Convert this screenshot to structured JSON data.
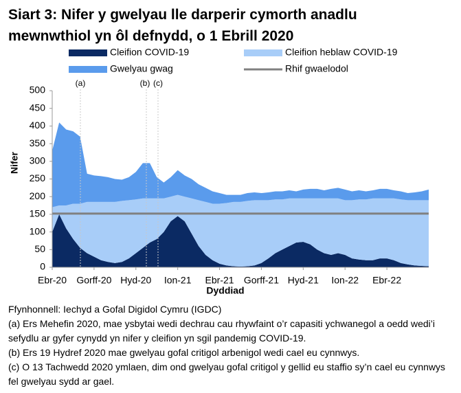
{
  "chart_data": {
    "type": "area",
    "title": "Siart 3: Nifer y gwelyau lle darperir cymorth anadlu mewnwthiol yn ôl defnydd, o 1 Ebrill 2020",
    "xlabel": "Dyddiad",
    "ylabel": "Nifer",
    "categories": [
      "Ebr-20",
      null,
      null,
      null,
      null,
      null,
      "Gorff-20",
      null,
      null,
      null,
      null,
      null,
      "Hyd-20",
      null,
      null,
      null,
      null,
      null,
      "Ion-21",
      null,
      null,
      null,
      null,
      null,
      "Ebr-21",
      null,
      null,
      null,
      null,
      null,
      "Gorff-21",
      null,
      null,
      null,
      null,
      null,
      "Hyd-21",
      null,
      null,
      null,
      null,
      null,
      "Ion-22",
      null,
      null,
      null,
      null,
      null,
      "Ebr-22",
      null,
      null,
      null,
      null,
      null,
      null
    ],
    "series": [
      {
        "name": "Cleifion COVID-19",
        "color": "#0b2a63",
        "values": [
          100,
          150,
          110,
          80,
          55,
          40,
          30,
          20,
          15,
          12,
          15,
          25,
          40,
          55,
          70,
          80,
          100,
          130,
          145,
          130,
          95,
          60,
          35,
          20,
          10,
          5,
          3,
          2,
          3,
          5,
          12,
          25,
          40,
          50,
          60,
          70,
          72,
          65,
          50,
          40,
          35,
          40,
          35,
          25,
          22,
          20,
          20,
          25,
          25,
          20,
          12,
          8,
          5,
          4,
          3
        ]
      },
      {
        "name": "Cleifion heblaw COVID-19",
        "color": "#a8cdf8",
        "values": [
          70,
          25,
          65,
          100,
          125,
          145,
          155,
          165,
          170,
          173,
          173,
          165,
          152,
          140,
          125,
          115,
          95,
          70,
          60,
          70,
          100,
          130,
          150,
          160,
          170,
          177,
          182,
          183,
          185,
          185,
          178,
          165,
          152,
          142,
          135,
          125,
          123,
          130,
          145,
          155,
          160,
          155,
          155,
          165,
          170,
          172,
          175,
          170,
          170,
          175,
          180,
          182,
          185,
          186,
          187
        ]
      },
      {
        "name": "Gwelyau gwag",
        "color": "#5a9bec",
        "values": [
          160,
          235,
          215,
          205,
          190,
          80,
          75,
          73,
          70,
          65,
          60,
          65,
          78,
          100,
          100,
          60,
          45,
          55,
          70,
          60,
          55,
          45,
          40,
          35,
          30,
          23,
          20,
          20,
          22,
          22,
          20,
          22,
          23,
          23,
          23,
          20,
          25,
          27,
          27,
          23,
          27,
          30,
          30,
          25,
          26,
          23,
          23,
          27,
          27,
          23,
          23,
          20,
          22,
          25,
          30
        ]
      }
    ],
    "baseline": {
      "name": "Rhif gwaelodol",
      "color": "#808080",
      "value": 152
    },
    "annotations": [
      "(a)",
      "(b)",
      "(c)"
    ],
    "ylim": [
      0,
      500
    ],
    "yticks": [
      0,
      50,
      100,
      150,
      200,
      250,
      300,
      350,
      400,
      450,
      500
    ]
  },
  "notes": [
    "Ffynhonnell: Iechyd a Gofal Digidol Cymru (IGDC)",
    "(a) Ers Mehefin 2020, mae ysbytai wedi dechrau cau rhywfaint o’r capasiti ychwanegol a oedd wedi’i sefydlu ar gyfer cynydd yn nifer y cleifion yn sgil pandemig COVID-19.",
    "(b) Ers 19 Hydref 2020 mae gwelyau gofal critigol arbenigol wedi cael eu cynnwys.",
    "(c) O 13 Tachwedd 2020 ymlaen, dim ond gwelyau gofal critigol y gellid eu staffio sy’n cael eu cynnwys fel gwelyau sydd ar gael."
  ]
}
